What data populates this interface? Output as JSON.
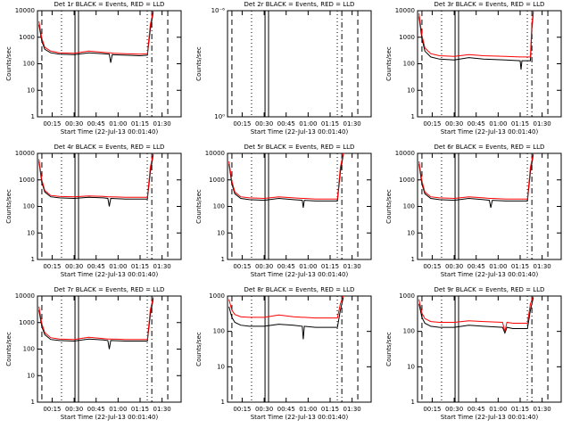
{
  "chart_data": [
    {
      "type": "line",
      "title": "Det 1r BLACK = Events, RED = LLD",
      "x_label": "Start Time (22-Jul-13 00:01:40)",
      "y_label": "Counts/sec",
      "log_y": true,
      "xlim": [
        5,
        103
      ],
      "xticks": [
        {
          "value": 15,
          "label": "00:15"
        },
        {
          "value": 30,
          "label": "00:30"
        },
        {
          "value": 45,
          "label": "00:45"
        },
        {
          "value": 60,
          "label": "01:00"
        },
        {
          "value": 75,
          "label": "01:15"
        },
        {
          "value": 90,
          "label": "01:30"
        }
      ],
      "ylim": [
        1,
        10000
      ],
      "yticks": [
        1,
        10,
        100,
        1000,
        10000
      ],
      "markers": [
        {
          "x": 8,
          "style": "dashed"
        },
        {
          "x": 21.4,
          "style": "dotted"
        },
        {
          "x": 30.6,
          "style": "solid"
        },
        {
          "x": 33,
          "style": "solid"
        },
        {
          "x": 79.9,
          "style": "dotted"
        },
        {
          "x": 83,
          "style": "dashdot"
        },
        {
          "x": 93.9,
          "style": "dashed"
        }
      ],
      "x": [
        6,
        8,
        10,
        14,
        20,
        30,
        40,
        50,
        54,
        55,
        56,
        65,
        75,
        80,
        82,
        84
      ],
      "series": [
        {
          "color": "#000000",
          "values": [
            3000,
            700,
            350,
            260,
            230,
            220,
            260,
            240,
            230,
            110,
            220,
            210,
            200,
            210,
            2000,
            9000
          ]
        },
        {
          "color": "#ff0000",
          "values": [
            4000,
            900,
            420,
            300,
            260,
            250,
            300,
            270,
            260,
            260,
            250,
            240,
            230,
            240,
            3000,
            10000
          ]
        }
      ]
    },
    {
      "type": "line",
      "title": "Det 2r BLACK = Events, RED = LLD",
      "x_label": "Start Time (22-Jul-13 00:01:40)",
      "y_label": "Counts/sec",
      "log_y": true,
      "xlim": [
        5,
        103
      ],
      "xticks": [
        {
          "value": 15,
          "label": "00:15"
        },
        {
          "value": 30,
          "label": "00:30"
        },
        {
          "value": 45,
          "label": "00:45"
        },
        {
          "value": 60,
          "label": "01:00"
        },
        {
          "value": 75,
          "label": "01:15"
        },
        {
          "value": 90,
          "label": "01:30"
        }
      ],
      "ylim": [
        1,
        1e-06
      ],
      "yticks": [
        {
          "value": 1e-06,
          "label": "10⁻⁶"
        },
        {
          "value": 1,
          "label": "10⁰"
        }
      ],
      "markers": [
        {
          "x": 8,
          "style": "dashed"
        },
        {
          "x": 21.4,
          "style": "dotted"
        },
        {
          "x": 30.6,
          "style": "solid"
        },
        {
          "x": 33,
          "style": "solid"
        },
        {
          "x": 79.9,
          "style": "dotted"
        },
        {
          "x": 83,
          "style": "dashdot"
        },
        {
          "x": 93.9,
          "style": "dashed"
        }
      ],
      "x": [],
      "series": []
    },
    {
      "type": "line",
      "title": "Det 3r BLACK = Events, RED = LLD",
      "x_label": "Start Time (22-Jul-13 00:01:40)",
      "y_label": "Counts/sec",
      "log_y": true,
      "xlim": [
        5,
        103
      ],
      "xticks": [
        {
          "value": 15,
          "label": "00:15"
        },
        {
          "value": 30,
          "label": "00:30"
        },
        {
          "value": 45,
          "label": "00:45"
        },
        {
          "value": 60,
          "label": "01:00"
        },
        {
          "value": 75,
          "label": "01:15"
        },
        {
          "value": 90,
          "label": "01:30"
        }
      ],
      "ylim": [
        1,
        10000
      ],
      "yticks": [
        1,
        10,
        100,
        1000,
        10000
      ],
      "markers": [
        {
          "x": 8,
          "style": "dashed"
        },
        {
          "x": 21.4,
          "style": "dotted"
        },
        {
          "x": 30.6,
          "style": "solid"
        },
        {
          "x": 33,
          "style": "solid"
        },
        {
          "x": 79.9,
          "style": "dotted"
        },
        {
          "x": 83,
          "style": "dashdot"
        },
        {
          "x": 93.9,
          "style": "dashed"
        }
      ],
      "x": [
        6,
        8,
        10,
        14,
        20,
        30,
        40,
        50,
        65,
        75,
        75.6,
        76.2,
        80,
        82,
        83,
        84
      ],
      "series": [
        {
          "color": "#000000",
          "values": [
            6000,
            900,
            300,
            180,
            150,
            140,
            170,
            150,
            140,
            130,
            60,
            130,
            130,
            130,
            2000,
            9000
          ]
        },
        {
          "color": "#ff0000",
          "values": [
            8000,
            1200,
            400,
            240,
            200,
            190,
            220,
            200,
            190,
            180,
            180,
            180,
            180,
            180,
            3000,
            10000
          ]
        }
      ]
    },
    {
      "type": "line",
      "title": "Det 4r BLACK = Events, RED = LLD",
      "x_label": "Start Time (22-Jul-13 00:01:40)",
      "y_label": "Counts/sec",
      "log_y": true,
      "xlim": [
        5,
        103
      ],
      "xticks": [
        {
          "value": 15,
          "label": "00:15"
        },
        {
          "value": 30,
          "label": "00:30"
        },
        {
          "value": 45,
          "label": "00:45"
        },
        {
          "value": 60,
          "label": "01:00"
        },
        {
          "value": 75,
          "label": "01:15"
        },
        {
          "value": 90,
          "label": "01:30"
        }
      ],
      "ylim": [
        1,
        10000
      ],
      "yticks": [
        1,
        10,
        100,
        1000,
        10000
      ],
      "markers": [
        {
          "x": 8,
          "style": "dashed"
        },
        {
          "x": 21.4,
          "style": "dotted"
        },
        {
          "x": 30.6,
          "style": "solid"
        },
        {
          "x": 33,
          "style": "solid"
        },
        {
          "x": 79.9,
          "style": "dotted"
        },
        {
          "x": 83,
          "style": "dashdot"
        },
        {
          "x": 93.9,
          "style": "dashed"
        }
      ],
      "x": [
        6,
        8,
        10,
        14,
        20,
        30,
        40,
        50,
        53,
        54,
        55,
        65,
        75,
        80,
        82,
        84
      ],
      "series": [
        {
          "color": "#000000",
          "values": [
            5000,
            800,
            350,
            230,
            210,
            200,
            220,
            210,
            200,
            100,
            200,
            190,
            190,
            190,
            2000,
            9000
          ]
        },
        {
          "color": "#ff0000",
          "values": [
            6000,
            1000,
            400,
            260,
            240,
            230,
            250,
            240,
            230,
            230,
            230,
            220,
            220,
            220,
            3000,
            10000
          ]
        }
      ]
    },
    {
      "type": "line",
      "title": "Det 5r BLACK = Events, RED = LLD",
      "x_label": "Start Time (22-Jul-13 00:01:40)",
      "y_label": "Counts/sec",
      "log_y": true,
      "xlim": [
        5,
        103
      ],
      "xticks": [
        {
          "value": 15,
          "label": "00:15"
        },
        {
          "value": 30,
          "label": "00:30"
        },
        {
          "value": 45,
          "label": "00:45"
        },
        {
          "value": 60,
          "label": "01:00"
        },
        {
          "value": 75,
          "label": "01:15"
        },
        {
          "value": 90,
          "label": "01:30"
        }
      ],
      "ylim": [
        1,
        10000
      ],
      "yticks": [
        1,
        10,
        100,
        1000,
        10000
      ],
      "markers": [
        {
          "x": 8,
          "style": "dashed"
        },
        {
          "x": 21.4,
          "style": "dotted"
        },
        {
          "x": 30.6,
          "style": "solid"
        },
        {
          "x": 33,
          "style": "solid"
        },
        {
          "x": 79.9,
          "style": "dotted"
        },
        {
          "x": 83,
          "style": "dashdot"
        },
        {
          "x": 93.9,
          "style": "dashed"
        }
      ],
      "x": [
        6,
        8,
        10,
        14,
        20,
        30,
        40,
        50,
        56,
        56.7,
        57.4,
        65,
        75,
        80,
        82,
        84
      ],
      "series": [
        {
          "color": "#000000",
          "values": [
            4000,
            700,
            300,
            200,
            180,
            170,
            200,
            180,
            170,
            90,
            170,
            160,
            160,
            160,
            2000,
            9000
          ]
        },
        {
          "color": "#ff0000",
          "values": [
            5000,
            900,
            350,
            230,
            210,
            200,
            230,
            210,
            200,
            200,
            200,
            190,
            190,
            190,
            3000,
            10000
          ]
        }
      ]
    },
    {
      "type": "line",
      "title": "Det 6r BLACK = Events, RED = LLD",
      "x_label": "Start Time (22-Jul-13 00:01:40)",
      "y_label": "Counts/sec",
      "log_y": true,
      "xlim": [
        5,
        103
      ],
      "xticks": [
        {
          "value": 15,
          "label": "00:15"
        },
        {
          "value": 30,
          "label": "00:30"
        },
        {
          "value": 45,
          "label": "00:45"
        },
        {
          "value": 60,
          "label": "01:00"
        },
        {
          "value": 75,
          "label": "01:15"
        },
        {
          "value": 90,
          "label": "01:30"
        }
      ],
      "ylim": [
        1,
        10000
      ],
      "yticks": [
        1,
        10,
        100,
        1000,
        10000
      ],
      "markers": [
        {
          "x": 8,
          "style": "dashed"
        },
        {
          "x": 21.4,
          "style": "dotted"
        },
        {
          "x": 30.6,
          "style": "solid"
        },
        {
          "x": 33,
          "style": "solid"
        },
        {
          "x": 79.9,
          "style": "dotted"
        },
        {
          "x": 83,
          "style": "dashdot"
        },
        {
          "x": 93.9,
          "style": "dashed"
        }
      ],
      "x": [
        6,
        8,
        10,
        14,
        20,
        30,
        40,
        50,
        54,
        55,
        56,
        65,
        75,
        80,
        82,
        84
      ],
      "series": [
        {
          "color": "#000000",
          "values": [
            4000,
            700,
            300,
            200,
            180,
            170,
            200,
            180,
            170,
            90,
            170,
            160,
            160,
            160,
            2000,
            9000
          ]
        },
        {
          "color": "#ff0000",
          "values": [
            5000,
            900,
            350,
            230,
            210,
            200,
            230,
            210,
            200,
            200,
            200,
            190,
            190,
            190,
            3000,
            10000
          ]
        }
      ]
    },
    {
      "type": "line",
      "title": "Det 7r BLACK = Events, RED = LLD",
      "x_label": "Start Time (22-Jul-13 00:01:40)",
      "y_label": "Counts/sec",
      "log_y": true,
      "xlim": [
        5,
        103
      ],
      "xticks": [
        {
          "value": 15,
          "label": "00:15"
        },
        {
          "value": 30,
          "label": "00:30"
        },
        {
          "value": 45,
          "label": "00:45"
        },
        {
          "value": 60,
          "label": "01:00"
        },
        {
          "value": 75,
          "label": "01:15"
        },
        {
          "value": 90,
          "label": "01:30"
        }
      ],
      "ylim": [
        1,
        10000
      ],
      "yticks": [
        1,
        10,
        100,
        1000,
        10000
      ],
      "markers": [
        {
          "x": 8,
          "style": "dashed"
        },
        {
          "x": 21.4,
          "style": "dotted"
        },
        {
          "x": 30.6,
          "style": "solid"
        },
        {
          "x": 33,
          "style": "solid"
        },
        {
          "x": 79.9,
          "style": "dotted"
        },
        {
          "x": 83,
          "style": "dashdot"
        },
        {
          "x": 93.9,
          "style": "dashed"
        }
      ],
      "x": [
        6,
        8,
        10,
        14,
        20,
        30,
        40,
        50,
        53,
        54,
        55,
        65,
        75,
        80,
        82,
        84
      ],
      "series": [
        {
          "color": "#000000",
          "values": [
            3000,
            700,
            350,
            230,
            210,
            200,
            240,
            220,
            210,
            100,
            210,
            200,
            200,
            200,
            2000,
            8000
          ]
        },
        {
          "color": "#ff0000",
          "values": [
            4000,
            900,
            420,
            270,
            240,
            230,
            280,
            250,
            240,
            240,
            240,
            230,
            230,
            230,
            3000,
            9000
          ]
        }
      ]
    },
    {
      "type": "line",
      "title": "Det 8r BLACK = Events, RED = LLD",
      "x_label": "Start Time (22-Jul-13 00:01:40)",
      "y_label": "Counts/sec",
      "log_y": true,
      "xlim": [
        5,
        103
      ],
      "xticks": [
        {
          "value": 15,
          "label": "00:15"
        },
        {
          "value": 30,
          "label": "00:30"
        },
        {
          "value": 45,
          "label": "00:45"
        },
        {
          "value": 60,
          "label": "01:00"
        },
        {
          "value": 75,
          "label": "01:15"
        },
        {
          "value": 90,
          "label": "01:30"
        }
      ],
      "ylim": [
        1,
        1000
      ],
      "yticks": [
        1,
        10,
        100,
        1000
      ],
      "markers": [
        {
          "x": 8,
          "style": "dashed"
        },
        {
          "x": 21.4,
          "style": "dotted"
        },
        {
          "x": 30.6,
          "style": "solid"
        },
        {
          "x": 33,
          "style": "solid"
        },
        {
          "x": 79.9,
          "style": "dotted"
        },
        {
          "x": 83,
          "style": "dashdot"
        },
        {
          "x": 93.9,
          "style": "dashed"
        }
      ],
      "x": [
        6,
        8,
        10,
        14,
        20,
        30,
        40,
        50,
        56,
        56.7,
        57.4,
        65,
        75,
        80,
        82,
        84
      ],
      "series": [
        {
          "color": "#000000",
          "values": [
            500,
            250,
            180,
            150,
            140,
            140,
            160,
            150,
            140,
            60,
            140,
            130,
            130,
            130,
            400,
            900
          ]
        },
        {
          "color": "#ff0000",
          "values": [
            800,
            400,
            300,
            260,
            250,
            250,
            290,
            260,
            250,
            250,
            250,
            240,
            240,
            240,
            600,
            1000
          ]
        }
      ]
    },
    {
      "type": "line",
      "title": "Det 9r BLACK = Events, RED = LLD",
      "x_label": "Start Time (22-Jul-13 00:01:40)",
      "y_label": "Counts/sec",
      "log_y": true,
      "xlim": [
        5,
        103
      ],
      "xticks": [
        {
          "value": 15,
          "label": "00:15"
        },
        {
          "value": 30,
          "label": "00:30"
        },
        {
          "value": 45,
          "label": "00:45"
        },
        {
          "value": 60,
          "label": "01:00"
        },
        {
          "value": 75,
          "label": "01:15"
        },
        {
          "value": 90,
          "label": "01:30"
        }
      ],
      "ylim": [
        1,
        1000
      ],
      "yticks": [
        1,
        10,
        100,
        1000
      ],
      "markers": [
        {
          "x": 8,
          "style": "dashed"
        },
        {
          "x": 21.4,
          "style": "dotted"
        },
        {
          "x": 30.6,
          "style": "solid"
        },
        {
          "x": 33,
          "style": "solid"
        },
        {
          "x": 79.9,
          "style": "dotted"
        },
        {
          "x": 83,
          "style": "dashdot"
        },
        {
          "x": 93.9,
          "style": "dashed"
        }
      ],
      "x": [
        6,
        8,
        10,
        14,
        20,
        30,
        40,
        50,
        63,
        64.6,
        66,
        70,
        75,
        80,
        82,
        84
      ],
      "series": [
        {
          "color": "#000000",
          "values": [
            600,
            250,
            170,
            140,
            130,
            130,
            150,
            140,
            130,
            90,
            130,
            120,
            120,
            120,
            400,
            900
          ]
        },
        {
          "color": "#ff0000",
          "values": [
            800,
            330,
            230,
            190,
            180,
            180,
            200,
            190,
            180,
            100,
            180,
            170,
            170,
            170,
            600,
            1000
          ]
        }
      ]
    }
  ]
}
